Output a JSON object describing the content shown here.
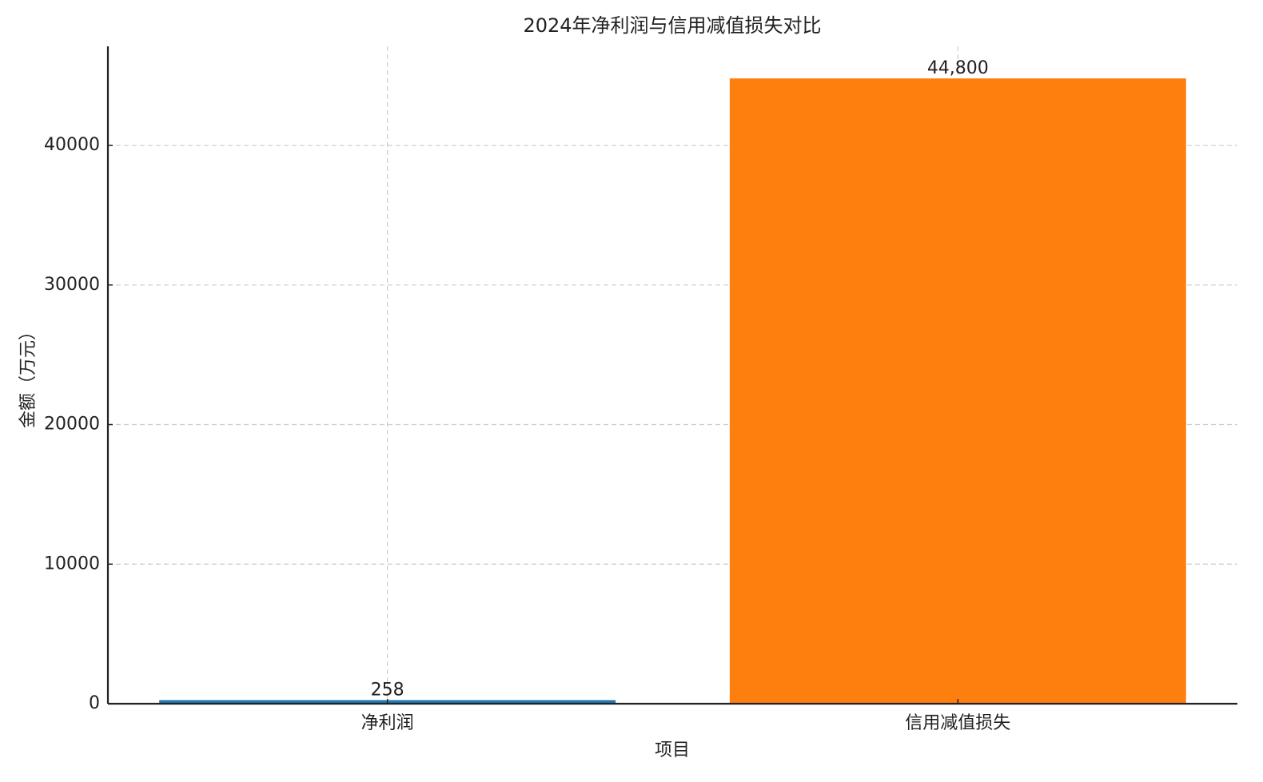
{
  "chart_data": {
    "type": "bar",
    "title": "2024年净利润与信用减值损失对比",
    "x_label": "项目",
    "y_label": "金额（万元）",
    "categories": [
      "净利润",
      "信用减值损失"
    ],
    "values": [
      258,
      44800
    ],
    "value_labels": [
      "258",
      "44,800"
    ],
    "colors": [
      "#1f77b4",
      "#ff7f0e"
    ],
    "ylim": [
      0,
      47100
    ],
    "yticks": [
      0,
      10000,
      20000,
      30000,
      40000
    ],
    "grid": true
  }
}
